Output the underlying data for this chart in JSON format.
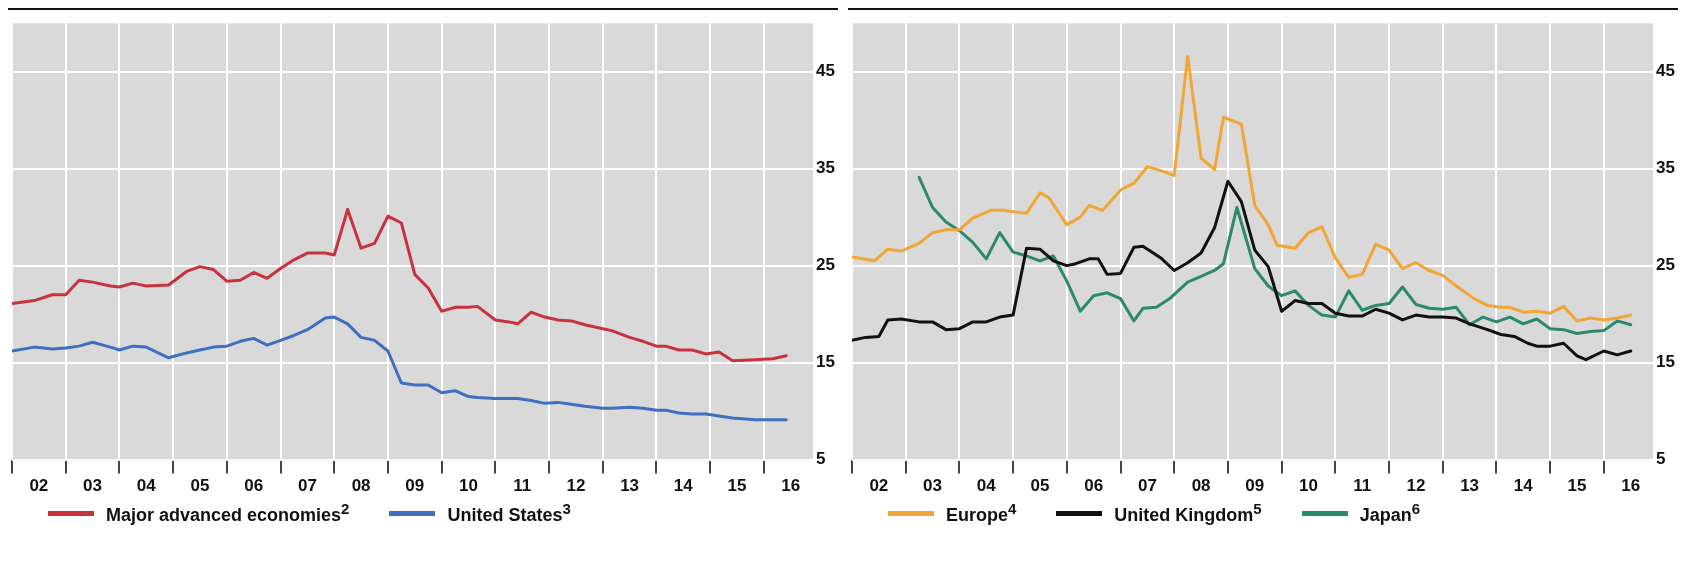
{
  "chart_data": [
    {
      "type": "line",
      "legend": "bottom",
      "grid": true,
      "xlim": [
        "2002-01",
        "2016-12"
      ],
      "ylim": [
        5,
        50
      ],
      "yticks": [
        5,
        15,
        25,
        35,
        45
      ],
      "xticks": [
        {
          "value": "2002-01",
          "label": null
        },
        {
          "value": "2002-07",
          "label": "02"
        },
        {
          "value": "2003-01",
          "label": null
        },
        {
          "value": "2003-07",
          "label": "03"
        },
        {
          "value": "2004-01",
          "label": null
        },
        {
          "value": "2004-07",
          "label": "04"
        },
        {
          "value": "2005-01",
          "label": null
        },
        {
          "value": "2005-07",
          "label": "05"
        },
        {
          "value": "2006-01",
          "label": null
        },
        {
          "value": "2006-07",
          "label": "06"
        },
        {
          "value": "2007-01",
          "label": null
        },
        {
          "value": "2007-07",
          "label": "07"
        },
        {
          "value": "2008-01",
          "label": null
        },
        {
          "value": "2008-07",
          "label": "08"
        },
        {
          "value": "2009-01",
          "label": null
        },
        {
          "value": "2009-07",
          "label": "09"
        },
        {
          "value": "2010-01",
          "label": null
        },
        {
          "value": "2010-07",
          "label": "10"
        },
        {
          "value": "2011-01",
          "label": null
        },
        {
          "value": "2011-07",
          "label": "11"
        },
        {
          "value": "2012-01",
          "label": null
        },
        {
          "value": "2012-07",
          "label": "12"
        },
        {
          "value": "2013-01",
          "label": null
        },
        {
          "value": "2013-07",
          "label": "13"
        },
        {
          "value": "2014-01",
          "label": null
        },
        {
          "value": "2014-07",
          "label": "14"
        },
        {
          "value": "2015-01",
          "label": null
        },
        {
          "value": "2015-07",
          "label": "15"
        },
        {
          "value": "2016-01",
          "label": null
        },
        {
          "value": "2016-07",
          "label": "16"
        }
      ],
      "x": [
        "2002-01",
        "2002-06",
        "2002-10",
        "2003-01",
        "2003-04",
        "2003-07",
        "2003-11",
        "2004-01",
        "2004-04",
        "2004-07",
        "2004-12",
        "2005-04",
        "2005-07",
        "2005-10",
        "2006-01",
        "2006-04",
        "2006-07",
        "2006-10",
        "2007-01",
        "2007-04",
        "2007-07",
        "2007-11",
        "2008-01",
        "2008-04",
        "2008-07",
        "2008-10",
        "2009-01",
        "2009-04",
        "2009-07",
        "2009-10",
        "2010-01",
        "2010-04",
        "2010-07",
        "2010-09",
        "2011-01",
        "2011-04",
        "2011-06",
        "2011-09",
        "2011-12",
        "2012-03",
        "2012-06",
        "2012-09",
        "2013-01",
        "2013-03",
        "2013-07",
        "2013-10",
        "2014-01",
        "2014-03",
        "2014-06",
        "2014-09",
        "2014-12",
        "2015-03",
        "2015-06",
        "2015-11",
        "2016-03",
        "2016-06"
      ],
      "series": [
        {
          "name": "Major advanced economies$^{2}$",
          "color": "#c8323c",
          "values": [
            21.1,
            21.4,
            22.0,
            22.0,
            23.5,
            23.3,
            22.9,
            22.8,
            23.2,
            22.9,
            23.0,
            24.4,
            24.9,
            24.6,
            23.4,
            23.5,
            24.3,
            23.7,
            24.7,
            25.6,
            26.3,
            26.3,
            26.1,
            30.8,
            26.8,
            27.3,
            30.1,
            29.4,
            24.1,
            22.7,
            20.3,
            20.7,
            20.7,
            20.8,
            19.4,
            19.2,
            19.0,
            20.2,
            19.7,
            19.4,
            19.3,
            18.9,
            18.5,
            18.3,
            17.6,
            17.2,
            16.7,
            16.7,
            16.3,
            16.3,
            15.9,
            16.1,
            15.2,
            15.3,
            15.4,
            15.7
          ]
        },
        {
          "name": "United States$^{3}$",
          "color": "#3f6fc0",
          "values": [
            16.2,
            16.6,
            16.4,
            16.5,
            16.7,
            17.1,
            16.6,
            16.3,
            16.7,
            16.6,
            15.5,
            16.0,
            16.3,
            16.6,
            16.7,
            17.2,
            17.5,
            16.8,
            17.3,
            17.8,
            18.4,
            19.6,
            19.7,
            19.0,
            17.6,
            17.3,
            16.2,
            12.9,
            12.7,
            12.7,
            11.9,
            12.1,
            11.5,
            11.4,
            11.3,
            11.3,
            11.3,
            11.1,
            10.8,
            10.9,
            10.7,
            10.5,
            10.3,
            10.3,
            10.4,
            10.3,
            10.1,
            10.1,
            9.8,
            9.7,
            9.7,
            9.5,
            9.3,
            9.1,
            9.1,
            9.1
          ]
        }
      ]
    },
    {
      "type": "line",
      "legend": "bottom",
      "grid": true,
      "xlim": [
        "2002-01",
        "2016-12"
      ],
      "ylim": [
        5,
        50
      ],
      "yticks": [
        5,
        15,
        25,
        35,
        45
      ],
      "xticks": [
        {
          "value": "2002-01",
          "label": null
        },
        {
          "value": "2002-07",
          "label": "02"
        },
        {
          "value": "2003-01",
          "label": null
        },
        {
          "value": "2003-07",
          "label": "03"
        },
        {
          "value": "2004-01",
          "label": null
        },
        {
          "value": "2004-07",
          "label": "04"
        },
        {
          "value": "2005-01",
          "label": null
        },
        {
          "value": "2005-07",
          "label": "05"
        },
        {
          "value": "2006-01",
          "label": null
        },
        {
          "value": "2006-07",
          "label": "06"
        },
        {
          "value": "2007-01",
          "label": null
        },
        {
          "value": "2007-07",
          "label": "07"
        },
        {
          "value": "2008-01",
          "label": null
        },
        {
          "value": "2008-07",
          "label": "08"
        },
        {
          "value": "2009-01",
          "label": null
        },
        {
          "value": "2009-07",
          "label": "09"
        },
        {
          "value": "2010-01",
          "label": null
        },
        {
          "value": "2010-07",
          "label": "10"
        },
        {
          "value": "2011-01",
          "label": null
        },
        {
          "value": "2011-07",
          "label": "11"
        },
        {
          "value": "2012-01",
          "label": null
        },
        {
          "value": "2012-07",
          "label": "12"
        },
        {
          "value": "2013-01",
          "label": null
        },
        {
          "value": "2013-07",
          "label": "13"
        },
        {
          "value": "2014-01",
          "label": null
        },
        {
          "value": "2014-07",
          "label": "14"
        },
        {
          "value": "2015-01",
          "label": null
        },
        {
          "value": "2015-07",
          "label": "15"
        },
        {
          "value": "2016-01",
          "label": null
        },
        {
          "value": "2016-07",
          "label": "16"
        }
      ],
      "series": [
        {
          "name": "Europe$^{4}$",
          "color": "#f0a535",
          "x": [
            "2002-01",
            "2002-06",
            "2002-09",
            "2002-12",
            "2003-04",
            "2003-07",
            "2003-10",
            "2004-01",
            "2004-04",
            "2004-08",
            "2004-11",
            "2005-04",
            "2005-07",
            "2005-09",
            "2006-01",
            "2006-04",
            "2006-06",
            "2006-09",
            "2007-01",
            "2007-04",
            "2007-07",
            "2007-10",
            "2008-01",
            "2008-04",
            "2008-07",
            "2008-10",
            "2008-12",
            "2009-04",
            "2009-07",
            "2009-10",
            "2009-12",
            "2010-04",
            "2010-07",
            "2010-10",
            "2011-01",
            "2011-04",
            "2011-07",
            "2011-10",
            "2012-01",
            "2012-04",
            "2012-07",
            "2012-10",
            "2013-01",
            "2013-04",
            "2013-08",
            "2013-11",
            "2014-02",
            "2014-04",
            "2014-07",
            "2014-10",
            "2015-01",
            "2015-04",
            "2015-07",
            "2015-10",
            "2016-01",
            "2016-04",
            "2016-07"
          ],
          "values": [
            25.9,
            25.5,
            26.7,
            26.5,
            27.3,
            28.4,
            28.7,
            28.7,
            29.9,
            30.7,
            30.7,
            30.4,
            32.5,
            32.0,
            29.2,
            30.0,
            31.2,
            30.7,
            32.8,
            33.5,
            35.2,
            34.8,
            34.3,
            46.6,
            36.1,
            34.9,
            40.3,
            39.6,
            31.2,
            29.2,
            27.1,
            26.8,
            28.4,
            29.0,
            25.8,
            23.8,
            24.1,
            27.2,
            26.6,
            24.7,
            25.3,
            24.5,
            24.0,
            22.9,
            21.6,
            20.9,
            20.7,
            20.7,
            20.2,
            20.3,
            20.1,
            20.8,
            19.3,
            19.6,
            19.4,
            19.6,
            19.9
          ]
        },
        {
          "name": "United Kingdom$^{5}$",
          "color": "#111111",
          "x": [
            "2002-01",
            "2002-04",
            "2002-07",
            "2002-09",
            "2002-12",
            "2003-04",
            "2003-07",
            "2003-10",
            "2004-01",
            "2004-04",
            "2004-07",
            "2004-10",
            "2005-01",
            "2005-04",
            "2005-07",
            "2005-10",
            "2006-01",
            "2006-03",
            "2006-06",
            "2006-08",
            "2006-10",
            "2007-01",
            "2007-04",
            "2007-06",
            "2007-10",
            "2008-01",
            "2008-04",
            "2008-07",
            "2008-10",
            "2009-01",
            "2009-04",
            "2009-07",
            "2009-10",
            "2010-01",
            "2010-04",
            "2010-07",
            "2010-10",
            "2011-01",
            "2011-04",
            "2011-07",
            "2011-10",
            "2012-01",
            "2012-04",
            "2012-07",
            "2012-10",
            "2013-01",
            "2013-04",
            "2013-07",
            "2013-11",
            "2014-02",
            "2014-05",
            "2014-08",
            "2014-10",
            "2015-01",
            "2015-04",
            "2015-07",
            "2015-09",
            "2016-01",
            "2016-04",
            "2016-07"
          ],
          "values": [
            17.3,
            17.6,
            17.7,
            19.4,
            19.5,
            19.2,
            19.2,
            18.4,
            18.5,
            19.2,
            19.2,
            19.7,
            19.9,
            26.8,
            26.7,
            25.5,
            25.0,
            25.2,
            25.7,
            25.7,
            24.1,
            24.2,
            26.9,
            27.0,
            25.8,
            24.5,
            25.3,
            26.3,
            28.9,
            33.7,
            31.6,
            26.6,
            24.9,
            20.3,
            21.4,
            21.1,
            21.1,
            20.1,
            19.8,
            19.8,
            20.5,
            20.1,
            19.4,
            19.9,
            19.7,
            19.7,
            19.6,
            19.0,
            18.4,
            17.9,
            17.7,
            17.0,
            16.7,
            16.7,
            17.0,
            15.7,
            15.3,
            16.2,
            15.8,
            16.2
          ]
        },
        {
          "name": "Japan$^{6}$",
          "color": "#2a8a6e",
          "x": [
            "2003-04",
            "2003-07",
            "2003-10",
            "2004-01",
            "2004-04",
            "2004-07",
            "2004-10",
            "2005-01",
            "2005-04",
            "2005-07",
            "2005-10",
            "2006-01",
            "2006-04",
            "2006-07",
            "2006-10",
            "2007-01",
            "2007-04",
            "2007-06",
            "2007-09",
            "2007-12",
            "2008-04",
            "2008-07",
            "2008-10",
            "2008-12",
            "2009-03",
            "2009-07",
            "2009-10",
            "2010-01",
            "2010-04",
            "2010-07",
            "2010-10",
            "2011-01",
            "2011-04",
            "2011-07",
            "2011-10",
            "2012-01",
            "2012-04",
            "2012-07",
            "2012-10",
            "2013-01",
            "2013-04",
            "2013-07",
            "2013-10",
            "2014-01",
            "2014-04",
            "2014-07",
            "2014-10",
            "2015-01",
            "2015-04",
            "2015-07",
            "2015-10",
            "2016-01",
            "2016-04",
            "2016-07"
          ],
          "values": [
            34.1,
            31.0,
            29.5,
            28.6,
            27.4,
            25.7,
            28.4,
            26.4,
            26.0,
            25.5,
            26.0,
            23.4,
            20.3,
            21.9,
            22.2,
            21.6,
            19.3,
            20.6,
            20.7,
            21.6,
            23.3,
            23.9,
            24.5,
            25.2,
            31.0,
            24.7,
            22.9,
            21.9,
            22.4,
            20.9,
            19.9,
            19.7,
            22.4,
            20.4,
            20.9,
            21.1,
            22.8,
            21.0,
            20.6,
            20.5,
            20.7,
            18.9,
            19.7,
            19.2,
            19.7,
            19.0,
            19.5,
            18.5,
            18.4,
            18.0,
            18.2,
            18.3,
            19.3,
            18.9
          ]
        }
      ]
    }
  ]
}
